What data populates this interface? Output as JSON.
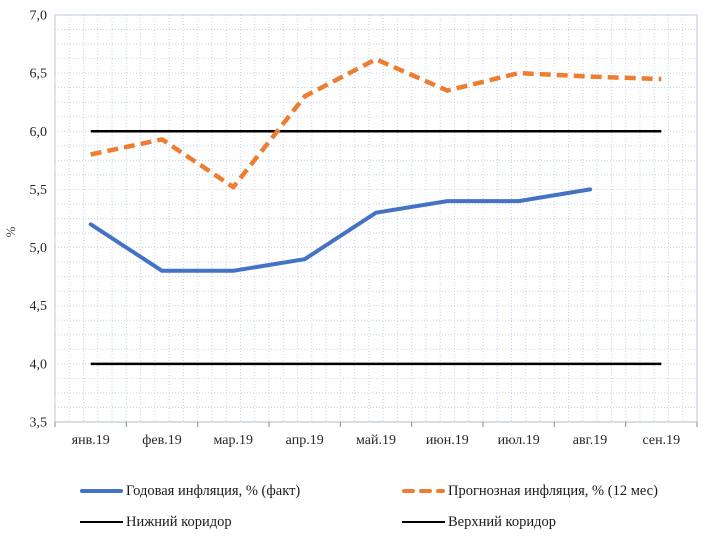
{
  "chart_data": {
    "type": "line",
    "title": "",
    "xlabel": "",
    "ylabel": "%",
    "ylim": [
      3.5,
      7.0
    ],
    "ytick_step": 0.5,
    "grid": "dotted-minor-and-major",
    "legend_position": "bottom-two-columns",
    "categories": [
      "янв.19",
      "фев.19",
      "мар.19",
      "апр.19",
      "май.19",
      "июн.19",
      "июл.19",
      "авг.19",
      "сен.19"
    ],
    "yticks": [
      "7,0",
      "6,5",
      "6,0",
      "5,5",
      "5,0",
      "4,5",
      "4,0",
      "3,5"
    ],
    "series": [
      {
        "name": "Годовая инфляция, % (факт)",
        "color": "#4472C4",
        "style": "solid",
        "values": [
          5.2,
          4.8,
          4.8,
          4.9,
          5.3,
          5.4,
          5.4,
          5.5,
          null
        ]
      },
      {
        "name": "Прогнозная инфляция, % (12 мес)",
        "color": "#ED7D31",
        "style": "dashed",
        "values": [
          5.8,
          5.93,
          5.52,
          6.3,
          6.62,
          6.35,
          6.5,
          6.47,
          6.45
        ]
      },
      {
        "name": "Нижний коридор",
        "color": "#000000",
        "style": "solid",
        "values": [
          4.0,
          4.0,
          4.0,
          4.0,
          4.0,
          4.0,
          4.0,
          4.0,
          4.0
        ]
      },
      {
        "name": "Верхний коридор",
        "color": "#000000",
        "style": "solid",
        "values": [
          6.0,
          6.0,
          6.0,
          6.0,
          6.0,
          6.0,
          6.0,
          6.0,
          6.0
        ]
      }
    ],
    "axis_colors": {
      "grid": "#c3d2ec",
      "axis": "#aebbd1",
      "tick_text": "#262626"
    }
  }
}
